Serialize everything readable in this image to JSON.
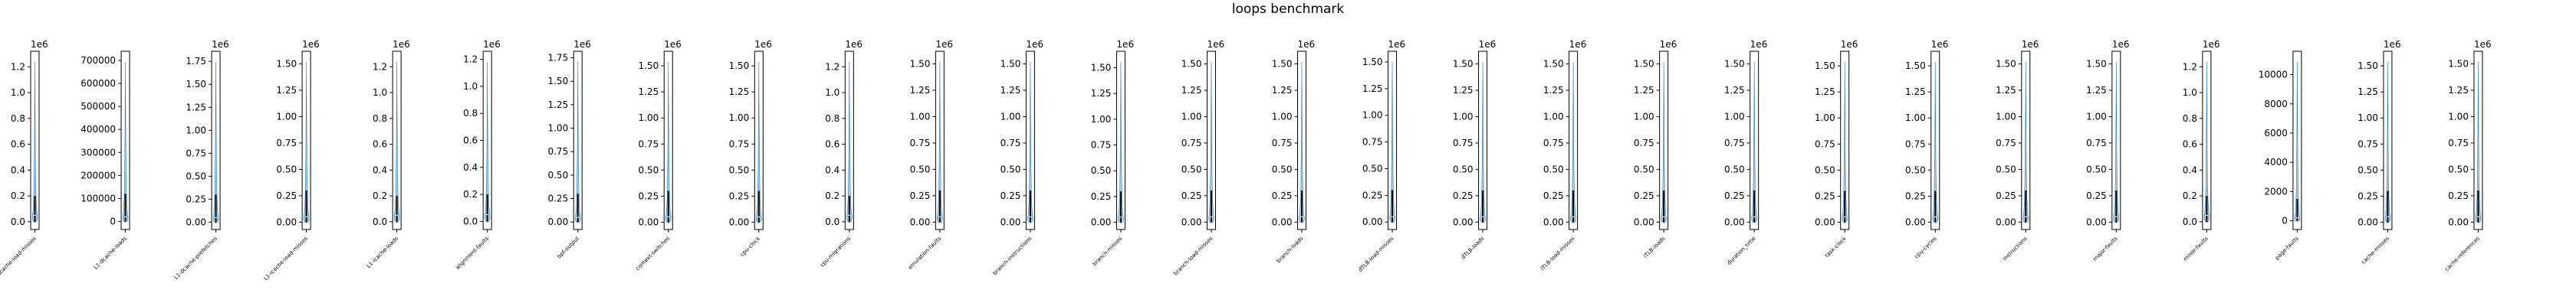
{
  "chart_data": {
    "type": "violin",
    "title": "loops benchmark",
    "xlabel": "",
    "ylabel": "",
    "facecolor": "#1f77b4",
    "subplots": [
      {
        "label": "L1-dcache-load-misses",
        "multiplier": "1e6",
        "ylim": [
          -0.06,
          1.32
        ],
        "ticks": [
          0.0,
          0.2,
          0.4,
          0.6,
          0.8,
          1.0,
          1.2
        ],
        "tick_labels": [
          "0.0",
          "0.2",
          "0.4",
          "0.6",
          "0.8",
          "1.0",
          "1.2"
        ],
        "box": [
          0.0,
          0.05,
          0.2
        ]
      },
      {
        "label": "L1-dcache-loads",
        "multiplier": "",
        "ylim": [
          -35000,
          740000
        ],
        "ticks": [
          0,
          100000,
          200000,
          300000,
          400000,
          500000,
          600000,
          700000
        ],
        "tick_labels": [
          "0",
          "100000",
          "200000",
          "300000",
          "400000",
          "500000",
          "600000",
          "700000"
        ],
        "box": [
          0,
          20000,
          120000
        ]
      },
      {
        "label": "L1-dcache-prefetches",
        "multiplier": "1e6",
        "ylim": [
          -0.08,
          1.86
        ],
        "ticks": [
          0.0,
          0.25,
          0.5,
          0.75,
          1.0,
          1.25,
          1.5,
          1.75
        ],
        "tick_labels": [
          "0.00",
          "0.25",
          "0.50",
          "0.75",
          "1.00",
          "1.25",
          "1.50",
          "1.75"
        ],
        "box": [
          0.0,
          0.05,
          0.3
        ]
      },
      {
        "label": "L1-icache-load-misses",
        "multiplier": "1e6",
        "ylim": [
          -0.07,
          1.62
        ],
        "ticks": [
          0.0,
          0.25,
          0.5,
          0.75,
          1.0,
          1.25,
          1.5
        ],
        "tick_labels": [
          "0.00",
          "0.25",
          "0.50",
          "0.75",
          "1.00",
          "1.25",
          "1.50"
        ],
        "box": [
          0.0,
          0.05,
          0.3
        ]
      },
      {
        "label": "L1-icache-loads",
        "multiplier": "1e6",
        "ylim": [
          -0.06,
          1.32
        ],
        "ticks": [
          0.0,
          0.2,
          0.4,
          0.6,
          0.8,
          1.0,
          1.2
        ],
        "tick_labels": [
          "0.0",
          "0.2",
          "0.4",
          "0.6",
          "0.8",
          "1.0",
          "1.2"
        ],
        "box": [
          0.0,
          0.05,
          0.2
        ]
      },
      {
        "label": "alignment-faults",
        "multiplier": "1e6",
        "ylim": [
          -0.06,
          1.26
        ],
        "ticks": [
          0.0,
          0.2,
          0.4,
          0.6,
          0.8,
          1.0,
          1.2
        ],
        "tick_labels": [
          "0.0",
          "0.2",
          "0.4",
          "0.6",
          "0.8",
          "1.0",
          "1.2"
        ],
        "box": [
          0.0,
          0.05,
          0.2
        ]
      },
      {
        "label": "bpf-output",
        "multiplier": "1e6",
        "ylim": [
          -0.08,
          1.82
        ],
        "ticks": [
          0.0,
          0.25,
          0.5,
          0.75,
          1.0,
          1.25,
          1.5,
          1.75
        ],
        "tick_labels": [
          "0.00",
          "0.25",
          "0.50",
          "0.75",
          "1.00",
          "1.25",
          "1.50",
          "1.75"
        ],
        "box": [
          0.0,
          0.05,
          0.3
        ]
      },
      {
        "label": "context-switches",
        "multiplier": "1e6",
        "ylim": [
          -0.07,
          1.64
        ],
        "ticks": [
          0.0,
          0.25,
          0.5,
          0.75,
          1.0,
          1.25,
          1.5
        ],
        "tick_labels": [
          "0.00",
          "0.25",
          "0.50",
          "0.75",
          "1.00",
          "1.25",
          "1.50"
        ],
        "box": [
          0.0,
          0.05,
          0.3
        ]
      },
      {
        "label": "cpu-clock",
        "multiplier": "1e6",
        "ylim": [
          -0.07,
          1.64
        ],
        "ticks": [
          0.0,
          0.25,
          0.5,
          0.75,
          1.0,
          1.25,
          1.5
        ],
        "tick_labels": [
          "0.00",
          "0.25",
          "0.50",
          "0.75",
          "1.00",
          "1.25",
          "1.50"
        ],
        "box": [
          0.0,
          0.05,
          0.3
        ]
      },
      {
        "label": "cpu-migrations",
        "multiplier": "1e6",
        "ylim": [
          -0.06,
          1.32
        ],
        "ticks": [
          0.0,
          0.2,
          0.4,
          0.6,
          0.8,
          1.0,
          1.2
        ],
        "tick_labels": [
          "0.0",
          "0.2",
          "0.4",
          "0.6",
          "0.8",
          "1.0",
          "1.2"
        ],
        "box": [
          0.0,
          0.05,
          0.2
        ]
      },
      {
        "label": "emulation-faults",
        "multiplier": "1e6",
        "ylim": [
          -0.07,
          1.62
        ],
        "ticks": [
          0.0,
          0.25,
          0.5,
          0.75,
          1.0,
          1.25,
          1.5
        ],
        "tick_labels": [
          "0.00",
          "0.25",
          "0.50",
          "0.75",
          "1.00",
          "1.25",
          "1.50"
        ],
        "box": [
          0.0,
          0.05,
          0.3
        ]
      },
      {
        "label": "branch-instructions",
        "multiplier": "1e6",
        "ylim": [
          -0.07,
          1.62
        ],
        "ticks": [
          0.0,
          0.25,
          0.5,
          0.75,
          1.0,
          1.25,
          1.5
        ],
        "tick_labels": [
          "0.00",
          "0.25",
          "0.50",
          "0.75",
          "1.00",
          "1.25",
          "1.50"
        ],
        "box": [
          0.0,
          0.05,
          0.3
        ]
      },
      {
        "label": "branch-misses",
        "multiplier": "1e6",
        "ylim": [
          -0.07,
          1.66
        ],
        "ticks": [
          0.0,
          0.25,
          0.5,
          0.75,
          1.0,
          1.25,
          1.5
        ],
        "tick_labels": [
          "0.00",
          "0.25",
          "0.50",
          "0.75",
          "1.00",
          "1.25",
          "1.50"
        ],
        "box": [
          0.0,
          0.05,
          0.3
        ]
      },
      {
        "label": "branch-load-misses",
        "multiplier": "1e6",
        "ylim": [
          -0.07,
          1.62
        ],
        "ticks": [
          0.0,
          0.25,
          0.5,
          0.75,
          1.0,
          1.25,
          1.5
        ],
        "tick_labels": [
          "0.00",
          "0.25",
          "0.50",
          "0.75",
          "1.00",
          "1.25",
          "1.50"
        ],
        "box": [
          0.0,
          0.05,
          0.3
        ]
      },
      {
        "label": "branch-loads",
        "multiplier": "1e6",
        "ylim": [
          -0.07,
          1.62
        ],
        "ticks": [
          0.0,
          0.25,
          0.5,
          0.75,
          1.0,
          1.25,
          1.5
        ],
        "tick_labels": [
          "0.00",
          "0.25",
          "0.50",
          "0.75",
          "1.00",
          "1.25",
          "1.50"
        ],
        "box": [
          0.0,
          0.05,
          0.3
        ]
      },
      {
        "label": "dTLB-load-misses",
        "multiplier": "1e6",
        "ylim": [
          -0.07,
          1.6
        ],
        "ticks": [
          0.0,
          0.25,
          0.5,
          0.75,
          1.0,
          1.25,
          1.5
        ],
        "tick_labels": [
          "0.00",
          "0.25",
          "0.50",
          "0.75",
          "1.00",
          "1.25",
          "1.50"
        ],
        "box": [
          0.0,
          0.05,
          0.3
        ]
      },
      {
        "label": "dTLB-loads",
        "multiplier": "1e6",
        "ylim": [
          -0.07,
          1.62
        ],
        "ticks": [
          0.0,
          0.25,
          0.5,
          0.75,
          1.0,
          1.25,
          1.5
        ],
        "tick_labels": [
          "0.00",
          "0.25",
          "0.50",
          "0.75",
          "1.00",
          "1.25",
          "1.50"
        ],
        "box": [
          0.0,
          0.05,
          0.3
        ]
      },
      {
        "label": "iTLB-load-misses",
        "multiplier": "1e6",
        "ylim": [
          -0.07,
          1.62
        ],
        "ticks": [
          0.0,
          0.25,
          0.5,
          0.75,
          1.0,
          1.25,
          1.5
        ],
        "tick_labels": [
          "0.00",
          "0.25",
          "0.50",
          "0.75",
          "1.00",
          "1.25",
          "1.50"
        ],
        "box": [
          0.0,
          0.05,
          0.3
        ]
      },
      {
        "label": "iTLB-loads",
        "multiplier": "1e6",
        "ylim": [
          -0.07,
          1.62
        ],
        "ticks": [
          0.0,
          0.25,
          0.5,
          0.75,
          1.0,
          1.25,
          1.5
        ],
        "tick_labels": [
          "0.00",
          "0.25",
          "0.50",
          "0.75",
          "1.00",
          "1.25",
          "1.50"
        ],
        "box": [
          0.0,
          0.05,
          0.3
        ]
      },
      {
        "label": "duration_time",
        "multiplier": "1e6",
        "ylim": [
          -0.07,
          1.62
        ],
        "ticks": [
          0.0,
          0.25,
          0.5,
          0.75,
          1.0,
          1.25,
          1.5
        ],
        "tick_labels": [
          "0.00",
          "0.25",
          "0.50",
          "0.75",
          "1.00",
          "1.25",
          "1.50"
        ],
        "box": [
          0.0,
          0.05,
          0.3
        ]
      },
      {
        "label": "task-clock",
        "multiplier": "1e6",
        "ylim": [
          -0.07,
          1.64
        ],
        "ticks": [
          0.0,
          0.25,
          0.5,
          0.75,
          1.0,
          1.25,
          1.5
        ],
        "tick_labels": [
          "0.00",
          "0.25",
          "0.50",
          "0.75",
          "1.00",
          "1.25",
          "1.50"
        ],
        "box": [
          0.0,
          0.05,
          0.3
        ]
      },
      {
        "label": "cpu-cycles",
        "multiplier": "1e6",
        "ylim": [
          -0.07,
          1.64
        ],
        "ticks": [
          0.0,
          0.25,
          0.5,
          0.75,
          1.0,
          1.25,
          1.5
        ],
        "tick_labels": [
          "0.00",
          "0.25",
          "0.50",
          "0.75",
          "1.00",
          "1.25",
          "1.50"
        ],
        "box": [
          0.0,
          0.05,
          0.3
        ]
      },
      {
        "label": "instructions",
        "multiplier": "1e6",
        "ylim": [
          -0.07,
          1.62
        ],
        "ticks": [
          0.0,
          0.25,
          0.5,
          0.75,
          1.0,
          1.25,
          1.5
        ],
        "tick_labels": [
          "0.00",
          "0.25",
          "0.50",
          "0.75",
          "1.00",
          "1.25",
          "1.50"
        ],
        "box": [
          0.0,
          0.05,
          0.3
        ]
      },
      {
        "label": "major-faults",
        "multiplier": "1e6",
        "ylim": [
          -0.07,
          1.62
        ],
        "ticks": [
          0.0,
          0.25,
          0.5,
          0.75,
          1.0,
          1.25,
          1.5
        ],
        "tick_labels": [
          "0.00",
          "0.25",
          "0.50",
          "0.75",
          "1.00",
          "1.25",
          "1.50"
        ],
        "box": [
          0.0,
          0.05,
          0.3
        ]
      },
      {
        "label": "minor-faults",
        "multiplier": "1e6",
        "ylim": [
          -0.06,
          1.32
        ],
        "ticks": [
          0.0,
          0.2,
          0.4,
          0.6,
          0.8,
          1.0,
          1.2
        ],
        "tick_labels": [
          "0.0",
          "0.2",
          "0.4",
          "0.6",
          "0.8",
          "1.0",
          "1.2"
        ],
        "box": [
          0.0,
          0.05,
          0.2
        ]
      },
      {
        "label": "page-faults",
        "multiplier": "",
        "ylim": [
          -600,
          11600
        ],
        "ticks": [
          0,
          2000,
          4000,
          6000,
          8000,
          10000
        ],
        "tick_labels": [
          "0",
          "2000",
          "4000",
          "6000",
          "8000",
          "10000"
        ],
        "box": [
          0,
          200,
          1500
        ]
      },
      {
        "label": "cache-misses",
        "multiplier": "1e6",
        "ylim": [
          -0.07,
          1.64
        ],
        "ticks": [
          0.0,
          0.25,
          0.5,
          0.75,
          1.0,
          1.25,
          1.5
        ],
        "tick_labels": [
          "0.00",
          "0.25",
          "0.50",
          "0.75",
          "1.00",
          "1.25",
          "1.50"
        ],
        "box": [
          0.0,
          0.05,
          0.3
        ]
      },
      {
        "label": "cache-references",
        "multiplier": "1e6",
        "ylim": [
          -0.07,
          1.62
        ],
        "ticks": [
          0.0,
          0.25,
          0.5,
          0.75,
          1.0,
          1.25,
          1.5
        ],
        "tick_labels": [
          "0.00",
          "0.25",
          "0.50",
          "0.75",
          "1.00",
          "1.25",
          "1.50"
        ],
        "box": [
          0.0,
          0.05,
          0.3
        ]
      }
    ]
  }
}
